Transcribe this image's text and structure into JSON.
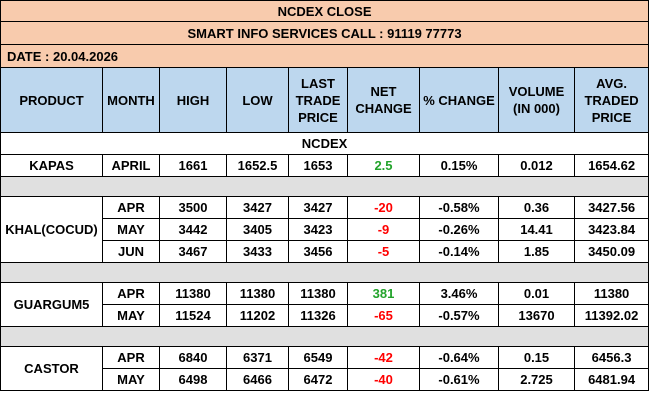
{
  "title": "NCDEX CLOSE",
  "subtitle": "SMART INFO SERVICES CALL : 91119 77773",
  "date_label": "DATE :  20.04.2026",
  "headers": [
    "PRODUCT",
    "MONTH",
    "HIGH",
    "LOW",
    "LAST TRADE PRICE",
    "NET CHANGE",
    "% CHANGE",
    "VOLUME (IN 000)",
    "AVG. TRADED PRICE"
  ],
  "section_label": "NCDEX",
  "colors": {
    "header_bg": "#bdd7ee",
    "title_bg": "#f8cbad",
    "gap_bg": "#e0e0e0",
    "positive": "#22a32b",
    "negative": "#ff0000"
  },
  "products": [
    {
      "name": "KAPAS",
      "rows": [
        {
          "month": "APRIL",
          "high": "1661",
          "low": "1652.5",
          "ltp": "1653",
          "net": "2.5",
          "pct": "0.15%",
          "vol": "0.012",
          "avg": "1654.62"
        }
      ]
    },
    {
      "name": "KHAL(COCUD)",
      "rows": [
        {
          "month": "APR",
          "high": "3500",
          "low": "3427",
          "ltp": "3427",
          "net": "-20",
          "pct": "-0.58%",
          "vol": "0.36",
          "avg": "3427.56"
        },
        {
          "month": "MAY",
          "high": "3442",
          "low": "3405",
          "ltp": "3423",
          "net": "-9",
          "pct": "-0.26%",
          "vol": "14.41",
          "avg": "3423.84"
        },
        {
          "month": "JUN",
          "high": "3467",
          "low": "3433",
          "ltp": "3456",
          "net": "-5",
          "pct": "-0.14%",
          "vol": "1.85",
          "avg": "3450.09"
        }
      ]
    },
    {
      "name": "GUARGUM5",
      "rows": [
        {
          "month": "APR",
          "high": "11380",
          "low": "11380",
          "ltp": "11380",
          "net": "381",
          "pct": "3.46%",
          "vol": "0.01",
          "avg": "11380"
        },
        {
          "month": "MAY",
          "high": "11524",
          "low": "11202",
          "ltp": "11326",
          "net": "-65",
          "pct": "-0.57%",
          "vol": "13670",
          "avg": "11392.02"
        }
      ]
    },
    {
      "name": "CASTOR",
      "rows": [
        {
          "month": "APR",
          "high": "6840",
          "low": "6371",
          "ltp": "6549",
          "net": "-42",
          "pct": "-0.64%",
          "vol": "0.15",
          "avg": "6456.3"
        },
        {
          "month": "MAY",
          "high": "6498",
          "low": "6466",
          "ltp": "6472",
          "net": "-40",
          "pct": "-0.61%",
          "vol": "2.725",
          "avg": "6481.94"
        }
      ]
    }
  ]
}
